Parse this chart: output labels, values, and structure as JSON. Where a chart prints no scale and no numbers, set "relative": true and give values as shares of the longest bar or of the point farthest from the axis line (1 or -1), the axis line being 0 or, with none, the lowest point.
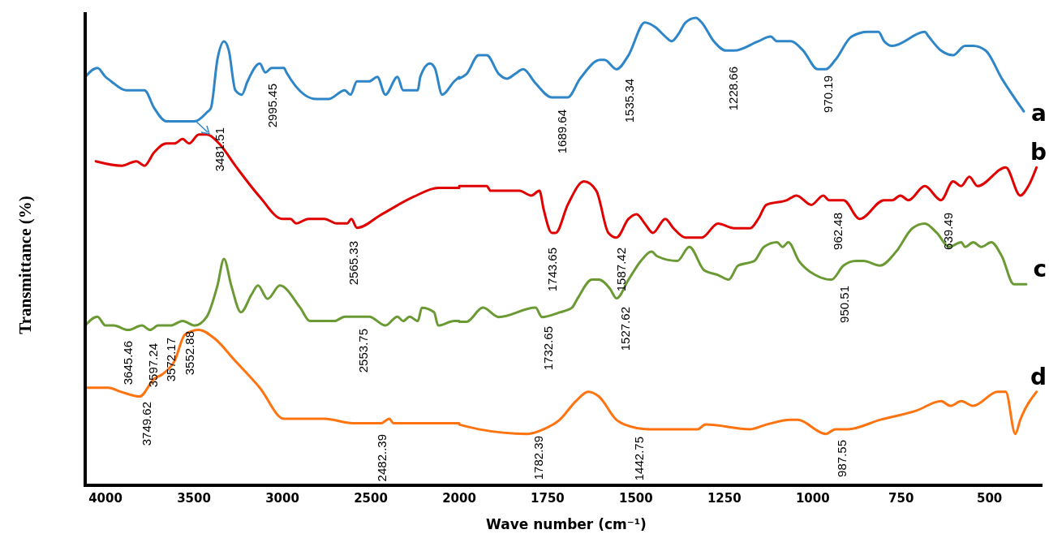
{
  "chart_data": [
    {
      "type": "line",
      "relative": true,
      "ylabel": "Transmittance (%)",
      "xlim": [
        4115,
        2000
      ],
      "xticks": [
        4000,
        3500,
        3000,
        2500
      ],
      "grid": false,
      "legend": false,
      "marker": "none",
      "line_style": "solid",
      "series": [
        {
          "color": "#2e86c8",
          "x": [
            4115,
            4046,
            4000,
            3968,
            3885,
            3817,
            3780,
            3725,
            3656,
            3587,
            3495,
            3427,
            3404,
            3367,
            3330,
            3303,
            3266,
            3229,
            3197,
            3128,
            3096,
            3060,
            2991,
            2977,
            2876,
            2807,
            2739,
            2647,
            2615,
            2578,
            2509,
            2463,
            2417,
            2349,
            2317,
            2280,
            2234,
            2220,
            2165,
            2138,
            2096,
            2028,
            2000
          ],
          "values": [
            0.92,
            0.94,
            0.92,
            0.91,
            0.89,
            0.89,
            0.89,
            0.85,
            0.82,
            0.82,
            0.82,
            0.84,
            0.85,
            0.96,
            1.0,
            0.98,
            0.89,
            0.88,
            0.91,
            0.95,
            0.93,
            0.94,
            0.94,
            0.93,
            0.88,
            0.87,
            0.87,
            0.89,
            0.88,
            0.91,
            0.91,
            0.92,
            0.88,
            0.92,
            0.89,
            0.89,
            0.89,
            0.92,
            0.95,
            0.94,
            0.88,
            0.91,
            0.92
          ]
        },
        {
          "color": "#e00000",
          "x": [
            4055,
            3908,
            3826,
            3780,
            3725,
            3656,
            3610,
            3564,
            3528,
            3472,
            3427,
            3358,
            3266,
            3128,
            3000,
            2954,
            2922,
            2853,
            2762,
            2693,
            2633,
            2610,
            2578,
            2440,
            2257,
            2119,
            2000
          ],
          "values": [
            0.73,
            0.72,
            0.73,
            0.72,
            0.75,
            0.77,
            0.77,
            0.78,
            0.77,
            0.79,
            0.79,
            0.77,
            0.72,
            0.65,
            0.6,
            0.6,
            0.59,
            0.6,
            0.6,
            0.59,
            0.59,
            0.6,
            0.58,
            0.61,
            0.65,
            0.67,
            0.67
          ]
        },
        {
          "color": "#6b9a34",
          "x": [
            4115,
            4046,
            4000,
            3954,
            3872,
            3794,
            3748,
            3702,
            3633,
            3564,
            3495,
            3427,
            3367,
            3330,
            3289,
            3234,
            3174,
            3138,
            3083,
            3014,
            2899,
            2844,
            2771,
            2706,
            2647,
            2578,
            2509,
            2417,
            2349,
            2317,
            2280,
            2234,
            2211,
            2142,
            2119,
            2028,
            2000
          ],
          "values": [
            0.36,
            0.38,
            0.36,
            0.36,
            0.35,
            0.36,
            0.35,
            0.36,
            0.36,
            0.37,
            0.36,
            0.38,
            0.45,
            0.51,
            0.45,
            0.39,
            0.43,
            0.45,
            0.42,
            0.45,
            0.4,
            0.37,
            0.37,
            0.37,
            0.38,
            0.38,
            0.38,
            0.36,
            0.38,
            0.37,
            0.38,
            0.37,
            0.4,
            0.39,
            0.36,
            0.37,
            0.37
          ]
        },
        {
          "color": "#ff7410",
          "x": [
            4115,
            3986,
            3908,
            3807,
            3725,
            3679,
            3610,
            3550,
            3472,
            3381,
            3266,
            3128,
            2991,
            2945,
            2876,
            2762,
            2601,
            2486,
            2440,
            2395,
            2372,
            2280,
            2211,
            2051,
            2000
          ],
          "values": [
            0.22,
            0.22,
            0.21,
            0.2,
            0.24,
            0.25,
            0.28,
            0.34,
            0.35,
            0.33,
            0.28,
            0.22,
            0.15,
            0.15,
            0.15,
            0.15,
            0.14,
            0.14,
            0.14,
            0.15,
            0.14,
            0.14,
            0.14,
            0.14,
            0.14
          ]
        }
      ],
      "annotations": [
        "3481.51",
        "2995.45",
        "2565.33",
        "3645.46",
        "3597.24",
        "3572.17",
        "3552.88",
        "2553.75",
        "3749.62",
        "2482..39"
      ]
    },
    {
      "type": "line",
      "relative": true,
      "xlabel": "Wave number (cm⁻¹)",
      "xlim": [
        2000,
        350
      ],
      "xticks": [
        2000,
        1750,
        1500,
        1250,
        1000,
        750,
        500
      ],
      "grid": false,
      "legend": false,
      "marker": "none",
      "line_style": "solid",
      "series": [
        {
          "name": "a",
          "color": "#2e86c8",
          "x": [
            2000,
            1979,
            1945,
            1922,
            1888,
            1865,
            1842,
            1819,
            1784,
            1738,
            1716,
            1693,
            1658,
            1601,
            1589,
            1555,
            1521,
            1475,
            1445,
            1417,
            1399,
            1376,
            1360,
            1330,
            1314,
            1280,
            1245,
            1222,
            1154,
            1119,
            1101,
            1062,
            1027,
            986,
            963,
            936,
            890,
            844,
            814,
            798,
            775,
            683,
            672,
            637,
            603,
            569,
            546,
            511,
            465,
            403
          ],
          "values": [
            0.87,
            0.88,
            0.92,
            0.92,
            0.88,
            0.87,
            0.88,
            0.89,
            0.86,
            0.83,
            0.83,
            0.83,
            0.87,
            0.91,
            0.91,
            0.89,
            0.92,
            0.99,
            0.98,
            0.96,
            0.95,
            0.97,
            0.99,
            1.0,
            0.99,
            0.95,
            0.93,
            0.93,
            0.95,
            0.96,
            0.95,
            0.95,
            0.93,
            0.89,
            0.89,
            0.91,
            0.96,
            0.97,
            0.97,
            0.95,
            0.94,
            0.97,
            0.96,
            0.93,
            0.92,
            0.94,
            0.94,
            0.93,
            0.87,
            0.8
          ]
        },
        {
          "name": "b",
          "color": "#e00000",
          "x": [
            2000,
            1968,
            1922,
            1911,
            1830,
            1796,
            1773,
            1761,
            1738,
            1727,
            1693,
            1647,
            1612,
            1578,
            1555,
            1521,
            1498,
            1475,
            1452,
            1417,
            1394,
            1360,
            1337,
            1314,
            1268,
            1222,
            1177,
            1154,
            1131,
            1073,
            1046,
            1004,
            970,
            954,
            913,
            867,
            798,
            775,
            752,
            729,
            683,
            637,
            603,
            580,
            557,
            534,
            454,
            413,
            390,
            367
          ],
          "values": [
            0.64,
            0.64,
            0.64,
            0.63,
            0.63,
            0.62,
            0.63,
            0.59,
            0.54,
            0.54,
            0.6,
            0.65,
            0.63,
            0.54,
            0.53,
            0.57,
            0.58,
            0.56,
            0.54,
            0.57,
            0.55,
            0.53,
            0.53,
            0.53,
            0.56,
            0.55,
            0.55,
            0.57,
            0.6,
            0.61,
            0.62,
            0.6,
            0.62,
            0.61,
            0.61,
            0.57,
            0.61,
            0.61,
            0.62,
            0.61,
            0.64,
            0.61,
            0.65,
            0.64,
            0.66,
            0.64,
            0.68,
            0.62,
            0.64,
            0.68
          ]
        },
        {
          "name": "c",
          "color": "#6b9a34",
          "x": [
            2000,
            1979,
            1933,
            1888,
            1784,
            1766,
            1716,
            1681,
            1665,
            1624,
            1605,
            1573,
            1555,
            1521,
            1486,
            1456,
            1440,
            1383,
            1349,
            1307,
            1268,
            1238,
            1211,
            1165,
            1138,
            1101,
            1085,
            1069,
            1039,
            993,
            947,
            913,
            878,
            856,
            810,
            764,
            718,
            683,
            649,
            614,
            580,
            569,
            546,
            523,
            495,
            465,
            431,
            396
          ],
          "values": [
            0.35,
            0.35,
            0.38,
            0.36,
            0.38,
            0.36,
            0.37,
            0.38,
            0.4,
            0.44,
            0.44,
            0.42,
            0.4,
            0.44,
            0.48,
            0.5,
            0.49,
            0.48,
            0.51,
            0.46,
            0.45,
            0.44,
            0.47,
            0.48,
            0.51,
            0.52,
            0.51,
            0.52,
            0.48,
            0.45,
            0.44,
            0.47,
            0.48,
            0.48,
            0.47,
            0.5,
            0.55,
            0.56,
            0.54,
            0.51,
            0.52,
            0.51,
            0.52,
            0.51,
            0.52,
            0.49,
            0.43,
            0.43
          ]
        },
        {
          "name": "d",
          "color": "#ff7410",
          "x": [
            2000,
            1945,
            1807,
            1761,
            1716,
            1670,
            1635,
            1605,
            1555,
            1532,
            1463,
            1326,
            1303,
            1177,
            1131,
            1062,
            1043,
            963,
            936,
            901,
            810,
            706,
            637,
            610,
            580,
            546,
            477,
            454,
            427,
            413,
            367
          ],
          "values": [
            0.13,
            0.12,
            0.11,
            0.12,
            0.14,
            0.18,
            0.2,
            0.19,
            0.14,
            0.13,
            0.12,
            0.12,
            0.13,
            0.12,
            0.13,
            0.14,
            0.14,
            0.11,
            0.12,
            0.12,
            0.14,
            0.16,
            0.18,
            0.17,
            0.18,
            0.17,
            0.2,
            0.2,
            0.11,
            0.14,
            0.2
          ]
        }
      ],
      "annotations": [
        "1689.64",
        "1535.34",
        "1228.66",
        "970.19",
        "1743.65",
        "1587.42",
        "962.48",
        "639.49",
        "1732.65",
        "1527.62",
        "950.51",
        "1782.39",
        "1442.75",
        "987.55"
      ]
    }
  ]
}
